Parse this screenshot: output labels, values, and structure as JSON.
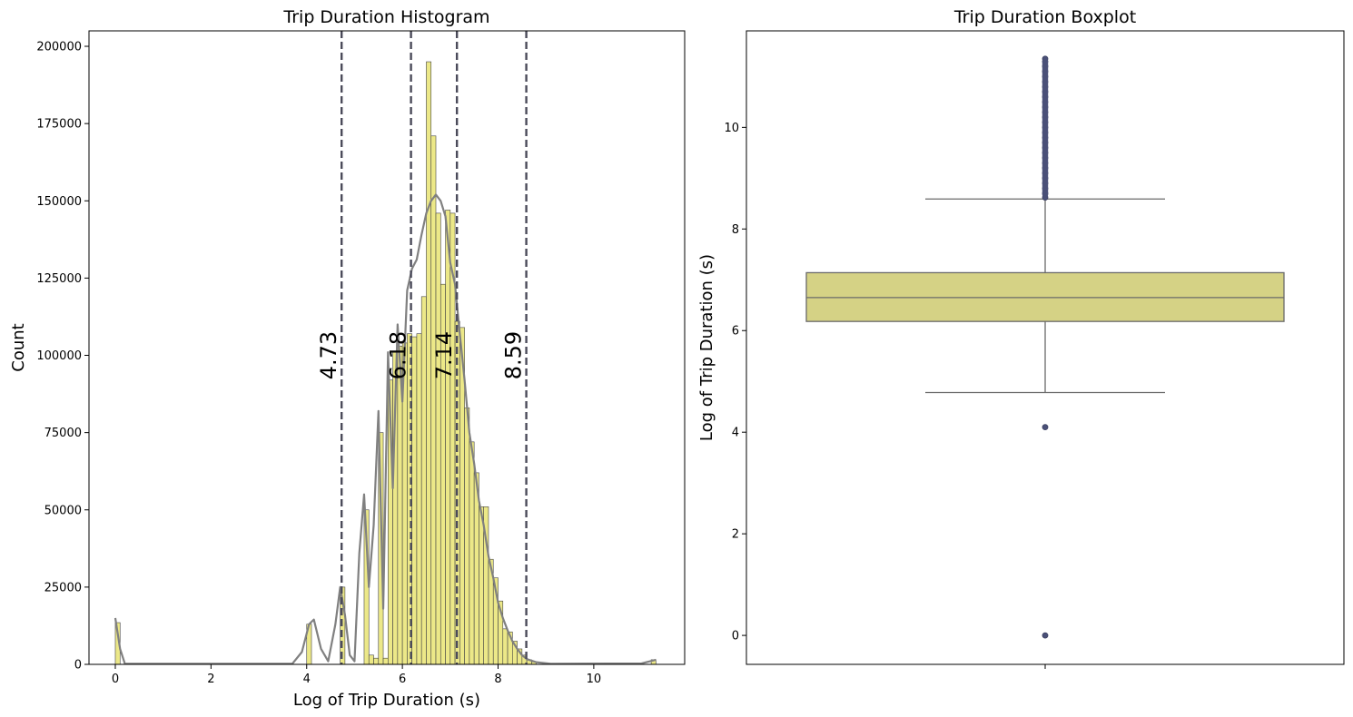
{
  "chart_data": [
    {
      "type": "bar",
      "title": "Trip Duration Histogram",
      "xlabel": "Log of Trip Duration (s)",
      "ylabel": "Count",
      "xlim": [
        -0.55,
        11.9
      ],
      "ylim": [
        0,
        205000
      ],
      "xticks": [
        0,
        2,
        4,
        6,
        8,
        10
      ],
      "yticks": [
        0,
        25000,
        50000,
        75000,
        100000,
        125000,
        150000,
        175000,
        200000
      ],
      "bar_color": "#ece888",
      "bar_edge": "#444444",
      "bin_width": 0.1,
      "bins": [
        {
          "x": 0.0,
          "count": 13500
        },
        {
          "x": 4.0,
          "count": 13000
        },
        {
          "x": 4.7,
          "count": 25000
        },
        {
          "x": 5.2,
          "count": 50000
        },
        {
          "x": 5.3,
          "count": 3000
        },
        {
          "x": 5.4,
          "count": 2000
        },
        {
          "x": 5.5,
          "count": 75000
        },
        {
          "x": 5.6,
          "count": 2000
        },
        {
          "x": 5.7,
          "count": 92000
        },
        {
          "x": 5.8,
          "count": 101000
        },
        {
          "x": 5.9,
          "count": 103000
        },
        {
          "x": 6.0,
          "count": 104000
        },
        {
          "x": 6.1,
          "count": 107000
        },
        {
          "x": 6.2,
          "count": 106000
        },
        {
          "x": 6.3,
          "count": 107000
        },
        {
          "x": 6.4,
          "count": 119000
        },
        {
          "x": 6.5,
          "count": 195000
        },
        {
          "x": 6.6,
          "count": 171000
        },
        {
          "x": 6.7,
          "count": 146000
        },
        {
          "x": 6.8,
          "count": 123000
        },
        {
          "x": 6.9,
          "count": 147000
        },
        {
          "x": 7.0,
          "count": 146000
        },
        {
          "x": 7.1,
          "count": 111000
        },
        {
          "x": 7.2,
          "count": 109000
        },
        {
          "x": 7.3,
          "count": 83000
        },
        {
          "x": 7.4,
          "count": 72000
        },
        {
          "x": 7.5,
          "count": 62000
        },
        {
          "x": 7.6,
          "count": 51000
        },
        {
          "x": 7.7,
          "count": 51000
        },
        {
          "x": 7.8,
          "count": 34000
        },
        {
          "x": 7.9,
          "count": 28000
        },
        {
          "x": 8.0,
          "count": 20500
        },
        {
          "x": 8.1,
          "count": 11500
        },
        {
          "x": 8.2,
          "count": 10500
        },
        {
          "x": 8.3,
          "count": 7500
        },
        {
          "x": 8.4,
          "count": 5000
        },
        {
          "x": 8.5,
          "count": 3000
        },
        {
          "x": 8.6,
          "count": 1500
        },
        {
          "x": 8.7,
          "count": 800
        },
        {
          "x": 11.2,
          "count": 1500
        }
      ],
      "kde": {
        "color": "#808080",
        "points": [
          [
            0.0,
            15000
          ],
          [
            0.1,
            5000
          ],
          [
            0.2,
            200
          ],
          [
            3.7,
            200
          ],
          [
            3.9,
            4000
          ],
          [
            4.05,
            13000
          ],
          [
            4.15,
            14500
          ],
          [
            4.3,
            5000
          ],
          [
            4.45,
            1000
          ],
          [
            4.6,
            13000
          ],
          [
            4.7,
            25000
          ],
          [
            4.8,
            16000
          ],
          [
            4.9,
            3000
          ],
          [
            5.0,
            1000
          ],
          [
            5.1,
            36000
          ],
          [
            5.2,
            55000
          ],
          [
            5.3,
            25000
          ],
          [
            5.4,
            45000
          ],
          [
            5.5,
            82000
          ],
          [
            5.6,
            18000
          ],
          [
            5.7,
            101000
          ],
          [
            5.8,
            57000
          ],
          [
            5.9,
            110000
          ],
          [
            6.0,
            85000
          ],
          [
            6.1,
            121000
          ],
          [
            6.2,
            128000
          ],
          [
            6.3,
            131000
          ],
          [
            6.4,
            139000
          ],
          [
            6.5,
            146000
          ],
          [
            6.6,
            150000
          ],
          [
            6.7,
            152000
          ],
          [
            6.8,
            150000
          ],
          [
            6.9,
            145000
          ],
          [
            7.0,
            130000
          ],
          [
            7.1,
            123000
          ],
          [
            7.2,
            107000
          ],
          [
            7.3,
            92000
          ],
          [
            7.4,
            75000
          ],
          [
            7.5,
            65000
          ],
          [
            7.6,
            53000
          ],
          [
            7.7,
            45000
          ],
          [
            7.8,
            35000
          ],
          [
            7.9,
            28000
          ],
          [
            8.0,
            20000
          ],
          [
            8.1,
            15000
          ],
          [
            8.2,
            11000
          ],
          [
            8.3,
            7500
          ],
          [
            8.4,
            5000
          ],
          [
            8.5,
            3000
          ],
          [
            8.6,
            1700
          ],
          [
            8.8,
            700
          ],
          [
            9.1,
            200
          ],
          [
            11.0,
            300
          ],
          [
            11.3,
            1500
          ]
        ]
      },
      "vlines": [
        {
          "x": 4.73,
          "label": "4.73"
        },
        {
          "x": 6.18,
          "label": "6.18"
        },
        {
          "x": 7.14,
          "label": "7.14"
        },
        {
          "x": 8.59,
          "label": "8.59"
        }
      ],
      "vline_color": "#4b4b5a"
    },
    {
      "type": "box",
      "title": "Trip Duration Boxplot",
      "xlabel": "",
      "ylabel": "Log of Trip Duration (s)",
      "ylim": [
        -0.57,
        11.9
      ],
      "yticks": [
        0,
        2,
        4,
        6,
        8,
        10
      ],
      "box_color": "#d5d285",
      "line_color": "#6a6a6a",
      "flier_color": "#4a5078",
      "q1": 6.18,
      "median": 6.65,
      "q3": 7.14,
      "whisker_low": 4.78,
      "whisker_high": 8.59,
      "outliers": [
        0.0,
        4.1,
        8.62,
        8.7,
        8.8,
        8.9,
        9.0,
        9.1,
        9.2,
        9.3,
        9.4,
        9.5,
        9.6,
        9.7,
        9.8,
        9.9,
        10.0,
        10.1,
        10.2,
        10.3,
        10.4,
        10.5,
        10.6,
        10.7,
        10.8,
        10.9,
        11.0,
        11.1,
        11.2,
        11.3,
        11.35
      ]
    }
  ]
}
